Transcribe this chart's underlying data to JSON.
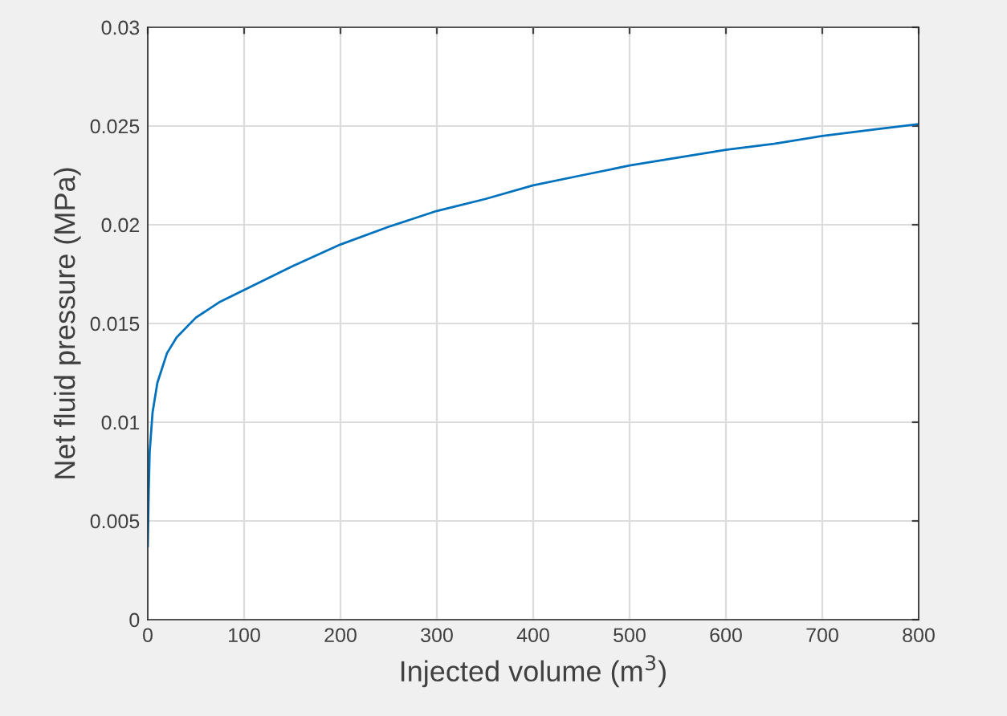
{
  "chart_data": {
    "type": "line",
    "xlabel": "Injected volume (m$^{3}$)",
    "ylabel": "Net fluid pressure (MPa)",
    "series": [
      {
        "color": "#0072bd",
        "x": [
          0,
          1,
          2,
          5,
          10,
          20,
          30,
          50,
          75,
          100,
          150,
          200,
          250,
          300,
          350,
          400,
          450,
          500,
          550,
          600,
          650,
          700,
          750,
          800
        ],
        "values": [
          0.0037,
          0.0065,
          0.0085,
          0.0105,
          0.012,
          0.0135,
          0.0143,
          0.0153,
          0.0161,
          0.0167,
          0.0179,
          0.019,
          0.0199,
          0.0207,
          0.0213,
          0.022,
          0.0225,
          0.023,
          0.0234,
          0.0238,
          0.0241,
          0.0245,
          0.0248,
          0.0251
        ]
      }
    ],
    "xlim": [
      0,
      800
    ],
    "xticks": [
      0,
      100,
      200,
      300,
      400,
      500,
      600,
      700,
      800
    ],
    "ylim": [
      0,
      0.03
    ],
    "yticks": [
      0,
      0.005,
      0.01,
      0.015,
      0.02,
      0.025,
      0.03
    ],
    "grid": true,
    "marker": "none",
    "line_style": "solid"
  }
}
